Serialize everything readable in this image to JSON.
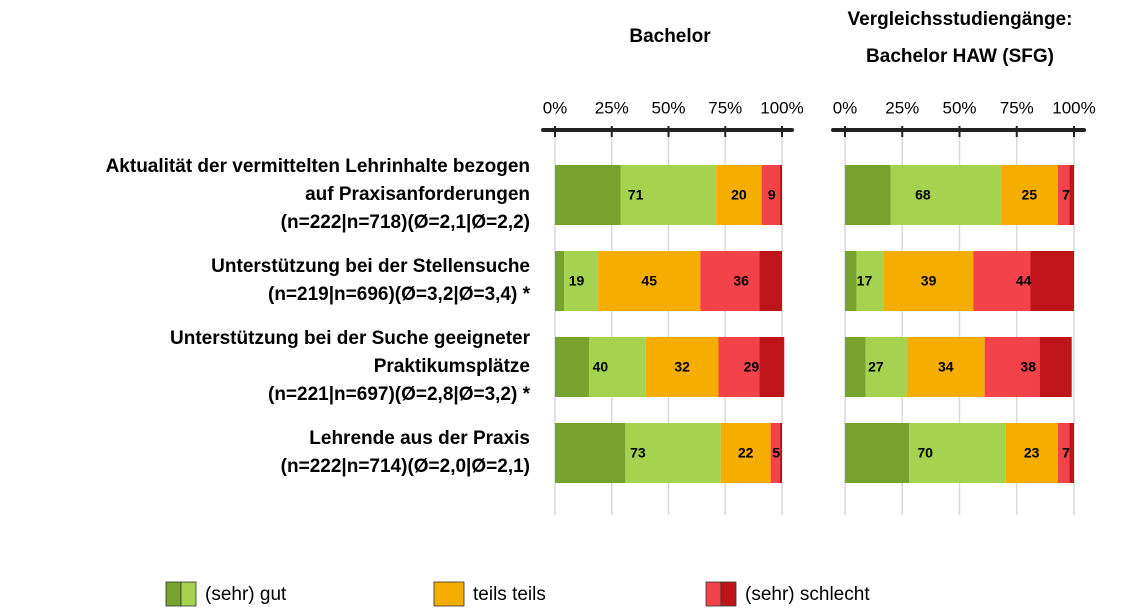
{
  "categories": [
    [
      "Aktualität der vermittelten Lehrinhalte bezogen",
      "auf Praxisanforderungen",
      "(n=222|n=718)(Ø=2,1|Ø=2,2)"
    ],
    [
      "Unterstützung bei der Stellensuche",
      "(n=219|n=696)(Ø=3,2|Ø=3,4) *"
    ],
    [
      "Unterstützung bei der Suche geeigneter",
      "Praktikumsplätze",
      "(n=221|n=697)(Ø=2,8|Ø=3,2) *"
    ],
    [
      "Lehrende aus der Praxis",
      "(n=222|n=714)(Ø=2,0|Ø=2,1)"
    ]
  ],
  "legend": [
    {
      "name": "(sehr) gut",
      "colors": [
        "#77a22d",
        "#a5d24f"
      ]
    },
    {
      "name": "teils teils",
      "colors": [
        "#f5ad00"
      ]
    },
    {
      "name": "(sehr) schlecht",
      "colors": [
        "#f2434a",
        "#c0141b"
      ]
    }
  ],
  "chart_data": [
    {
      "type": "stacked-bar",
      "title": [
        "Bachelor"
      ],
      "xlim": [
        0,
        100
      ],
      "xticks": [
        {
          "value": 0,
          "label": "0%"
        },
        {
          "value": 25,
          "label": "25%"
        },
        {
          "value": 50,
          "label": "50%"
        },
        {
          "value": 75,
          "label": "75%"
        },
        {
          "value": 100,
          "label": "100%"
        }
      ],
      "series": [
        {
          "color": "#77a22d",
          "values": [
            29,
            4,
            15,
            31
          ]
        },
        {
          "color": "#a5d24f",
          "values": [
            42,
            15,
            25,
            42
          ]
        },
        {
          "color": "#f5ad00",
          "values": [
            20,
            45,
            32,
            22
          ]
        },
        {
          "color": "#f2434a",
          "values": [
            8,
            26,
            18,
            4
          ]
        },
        {
          "color": "#c0141b",
          "values": [
            1,
            10,
            11,
            1
          ]
        }
      ],
      "group_values": [
        [
          71,
          20,
          9
        ],
        [
          19,
          45,
          36
        ],
        [
          40,
          32,
          29
        ],
        [
          73,
          22,
          5
        ]
      ]
    },
    {
      "type": "stacked-bar",
      "title": [
        "Vergleichsstudiengänge:",
        "Bachelor HAW (SFG)"
      ],
      "xlim": [
        0,
        100
      ],
      "xticks": [
        {
          "value": 0,
          "label": "0%"
        },
        {
          "value": 25,
          "label": "25%"
        },
        {
          "value": 50,
          "label": "50%"
        },
        {
          "value": 75,
          "label": "75%"
        },
        {
          "value": 100,
          "label": "100%"
        }
      ],
      "series": [
        {
          "color": "#77a22d",
          "values": [
            20,
            5,
            9,
            28
          ]
        },
        {
          "color": "#a5d24f",
          "values": [
            48,
            12,
            18,
            42
          ]
        },
        {
          "color": "#f5ad00",
          "values": [
            25,
            39,
            34,
            23
          ]
        },
        {
          "color": "#f2434a",
          "values": [
            5,
            25,
            24,
            5
          ]
        },
        {
          "color": "#c0141b",
          "values": [
            2,
            19,
            14,
            2
          ]
        }
      ],
      "group_values": [
        [
          68,
          25,
          7
        ],
        [
          17,
          39,
          44
        ],
        [
          27,
          34,
          38
        ],
        [
          70,
          23,
          7
        ]
      ]
    }
  ]
}
